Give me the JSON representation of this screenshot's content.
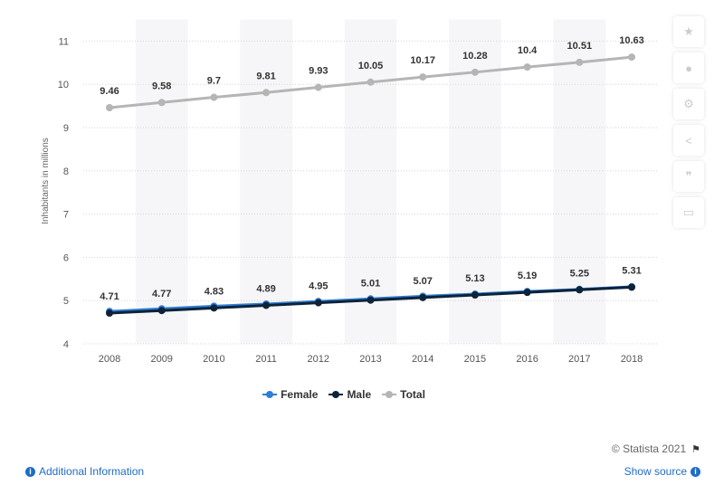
{
  "chart_data": {
    "type": "line",
    "x": [
      "2008",
      "2009",
      "2010",
      "2011",
      "2012",
      "2013",
      "2014",
      "2015",
      "2016",
      "2017",
      "2018"
    ],
    "series": [
      {
        "name": "Female",
        "color": "#2f7ed8",
        "values": [
          4.75,
          4.81,
          4.87,
          4.92,
          4.98,
          5.04,
          5.1,
          5.15,
          5.21,
          5.26,
          5.32
        ],
        "labels": false
      },
      {
        "name": "Male",
        "color": "#0d233a",
        "values": [
          4.71,
          4.77,
          4.83,
          4.89,
          4.95,
          5.01,
          5.07,
          5.13,
          5.19,
          5.25,
          5.31
        ],
        "labels": true
      },
      {
        "name": "Total",
        "color": "#b5b5b5",
        "values": [
          9.46,
          9.58,
          9.7,
          9.81,
          9.93,
          10.05,
          10.17,
          10.28,
          10.4,
          10.51,
          10.63
        ],
        "labels": true
      }
    ],
    "yticks": [
      "4",
      "5",
      "6",
      "7",
      "8",
      "9",
      "10",
      "11"
    ],
    "ylim": [
      4,
      11.5
    ],
    "ylabel": "Inhabitants in millions",
    "xlabel": "",
    "grid": true,
    "legend": "bottom-center"
  },
  "credit": "© Statista 2021",
  "footer": {
    "additional_info": "Additional Information",
    "show_source": "Show source"
  },
  "toolbar_icons": [
    "star-icon",
    "bell-icon",
    "gear-icon",
    "share-icon",
    "quote-icon",
    "print-icon"
  ]
}
